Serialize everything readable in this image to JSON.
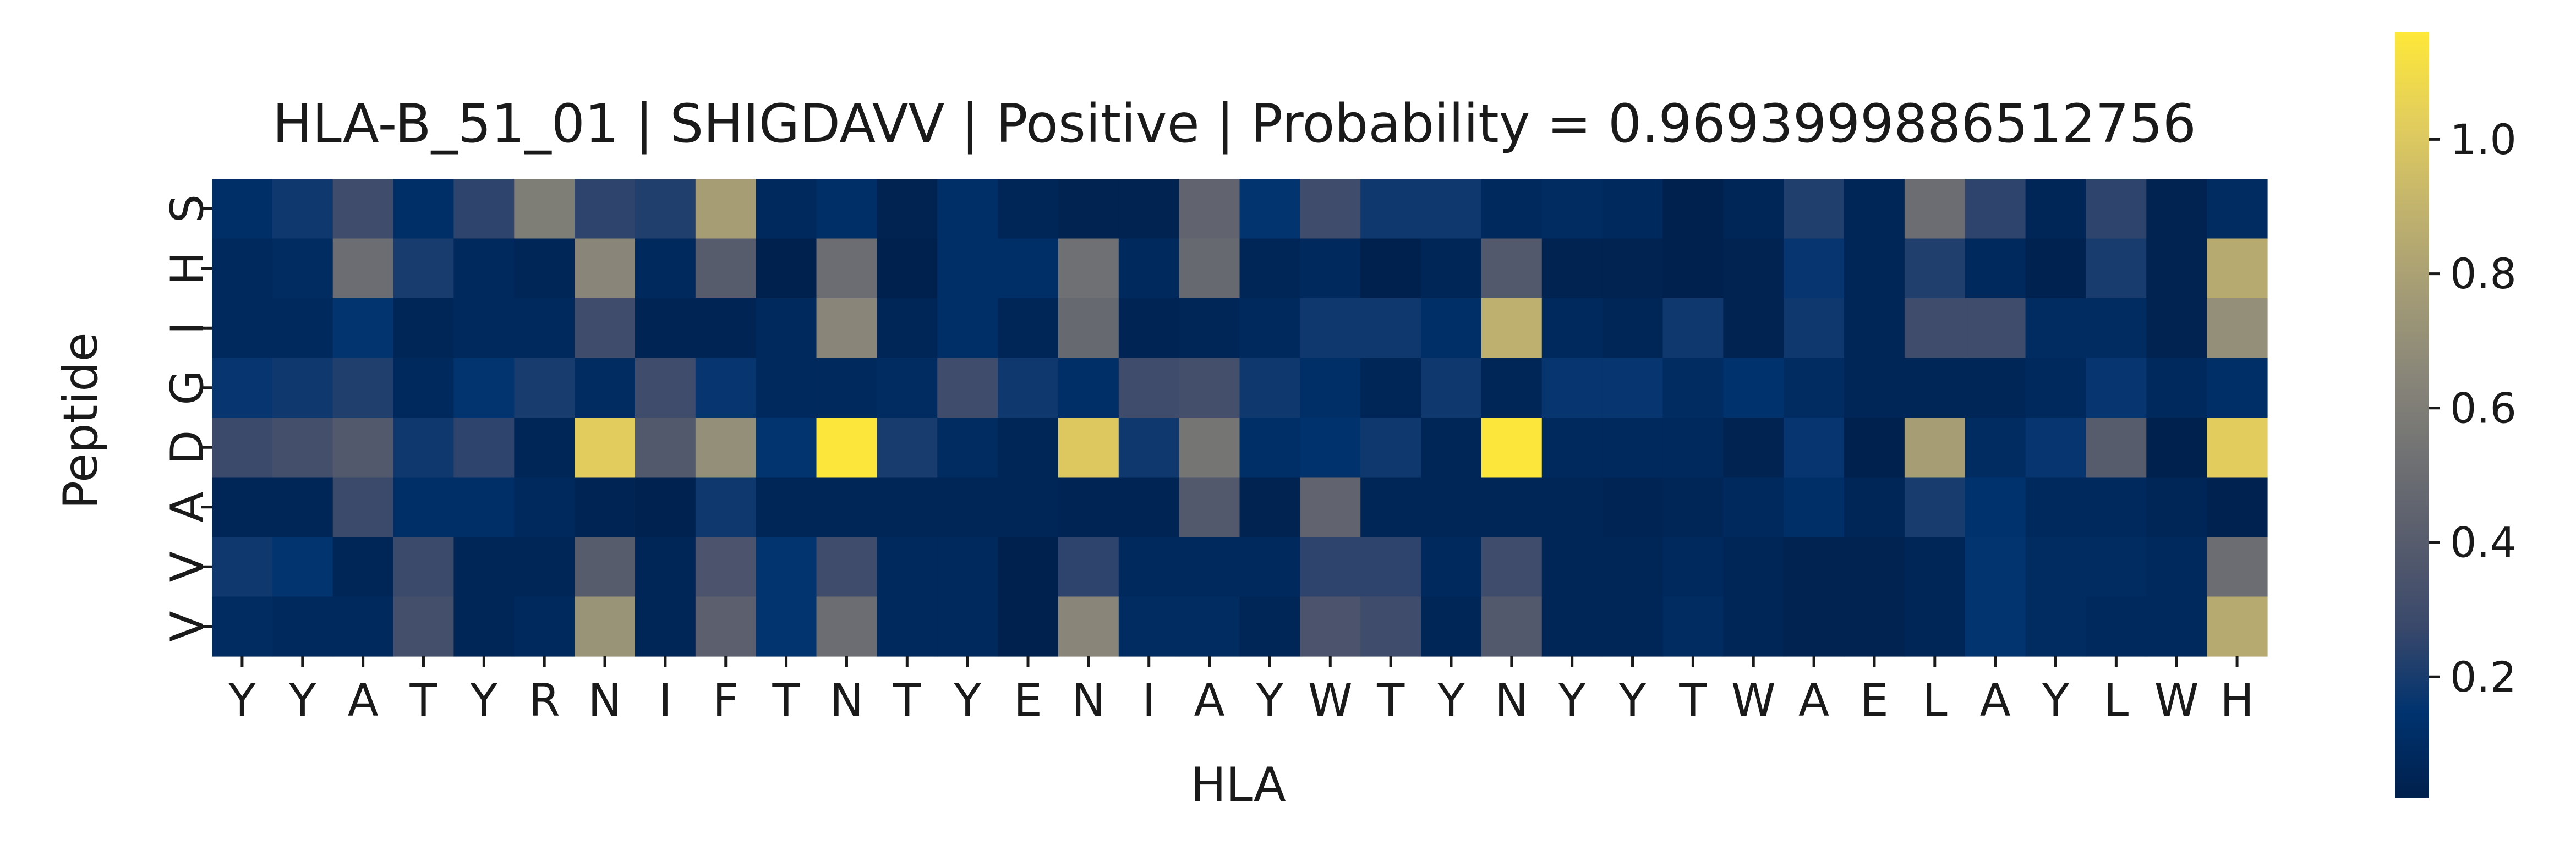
{
  "chart_data": {
    "type": "heatmap",
    "title": "HLA-B_51_01 | SHIGDAVV | Positive | Probability = 0.9693999886512756",
    "xlabel": "HLA",
    "ylabel": "Peptide",
    "x_categories": [
      "Y",
      "Y",
      "A",
      "T",
      "Y",
      "R",
      "N",
      "I",
      "F",
      "T",
      "N",
      "T",
      "Y",
      "E",
      "N",
      "I",
      "A",
      "Y",
      "W",
      "T",
      "Y",
      "N",
      "Y",
      "Y",
      "T",
      "W",
      "A",
      "E",
      "L",
      "A",
      "Y",
      "L",
      "W",
      "H"
    ],
    "y_categories": [
      "S",
      "H",
      "I",
      "G",
      "D",
      "A",
      "V",
      "V"
    ],
    "values": [
      [
        0.12,
        0.18,
        0.3,
        0.12,
        0.25,
        0.6,
        0.25,
        0.22,
        0.78,
        0.08,
        0.12,
        0.04,
        0.12,
        0.06,
        0.04,
        0.04,
        0.45,
        0.15,
        0.3,
        0.18,
        0.18,
        0.08,
        0.1,
        0.08,
        0.02,
        0.06,
        0.22,
        0.06,
        0.5,
        0.25,
        0.06,
        0.25,
        0.04,
        0.1
      ],
      [
        0.08,
        0.1,
        0.5,
        0.2,
        0.08,
        0.06,
        0.65,
        0.08,
        0.4,
        0.02,
        0.5,
        0.02,
        0.12,
        0.12,
        0.52,
        0.08,
        0.48,
        0.06,
        0.08,
        0.02,
        0.06,
        0.38,
        0.04,
        0.04,
        0.02,
        0.04,
        0.16,
        0.06,
        0.22,
        0.08,
        0.03,
        0.2,
        0.04,
        0.85
      ],
      [
        0.08,
        0.08,
        0.15,
        0.06,
        0.08,
        0.08,
        0.3,
        0.05,
        0.05,
        0.08,
        0.65,
        0.06,
        0.12,
        0.06,
        0.48,
        0.05,
        0.06,
        0.08,
        0.18,
        0.18,
        0.12,
        0.88,
        0.08,
        0.06,
        0.18,
        0.04,
        0.18,
        0.06,
        0.3,
        0.3,
        0.1,
        0.1,
        0.04,
        0.7
      ],
      [
        0.16,
        0.18,
        0.22,
        0.08,
        0.15,
        0.2,
        0.1,
        0.3,
        0.16,
        0.08,
        0.08,
        0.1,
        0.3,
        0.18,
        0.12,
        0.3,
        0.32,
        0.18,
        0.12,
        0.06,
        0.18,
        0.06,
        0.16,
        0.16,
        0.1,
        0.14,
        0.1,
        0.06,
        0.06,
        0.06,
        0.08,
        0.16,
        0.08,
        0.12
      ],
      [
        0.28,
        0.32,
        0.38,
        0.18,
        0.25,
        0.06,
        1.02,
        0.38,
        0.7,
        0.15,
        1.15,
        0.2,
        0.1,
        0.06,
        1.0,
        0.18,
        0.55,
        0.12,
        0.14,
        0.18,
        0.06,
        1.15,
        0.08,
        0.08,
        0.08,
        0.04,
        0.16,
        0.02,
        0.78,
        0.1,
        0.16,
        0.4,
        0.02,
        1.02
      ],
      [
        0.06,
        0.06,
        0.28,
        0.12,
        0.12,
        0.08,
        0.05,
        0.03,
        0.18,
        0.06,
        0.06,
        0.06,
        0.06,
        0.06,
        0.05,
        0.05,
        0.38,
        0.04,
        0.45,
        0.06,
        0.06,
        0.06,
        0.06,
        0.05,
        0.06,
        0.08,
        0.12,
        0.06,
        0.2,
        0.14,
        0.08,
        0.08,
        0.06,
        0.03
      ],
      [
        0.18,
        0.15,
        0.06,
        0.28,
        0.06,
        0.06,
        0.4,
        0.06,
        0.35,
        0.15,
        0.3,
        0.08,
        0.08,
        0.02,
        0.25,
        0.08,
        0.08,
        0.08,
        0.25,
        0.25,
        0.08,
        0.3,
        0.06,
        0.06,
        0.08,
        0.06,
        0.04,
        0.04,
        0.06,
        0.15,
        0.1,
        0.1,
        0.08,
        0.5
      ],
      [
        0.1,
        0.08,
        0.08,
        0.32,
        0.06,
        0.08,
        0.72,
        0.06,
        0.42,
        0.15,
        0.5,
        0.08,
        0.08,
        0.02,
        0.65,
        0.1,
        0.1,
        0.06,
        0.35,
        0.3,
        0.06,
        0.38,
        0.06,
        0.06,
        0.1,
        0.06,
        0.04,
        0.04,
        0.06,
        0.15,
        0.1,
        0.08,
        0.08,
        0.85
      ]
    ],
    "value_range": [
      0.02,
      1.16
    ],
    "colormap": "cividis",
    "colormap_stops": [
      "#00204d",
      "#00336f",
      "#39486b",
      "#575c6d",
      "#707173",
      "#8a8779",
      "#a69d75",
      "#c4b56c",
      "#e4cf5b",
      "#fee838"
    ],
    "colorbar": {
      "ticks": [
        0.2,
        0.4,
        0.6,
        0.8,
        1.0
      ],
      "tick_labels": [
        "0.2",
        "0.4",
        "0.6",
        "0.8",
        "1.0"
      ]
    },
    "grid": false,
    "legend": "colorbar-right"
  }
}
